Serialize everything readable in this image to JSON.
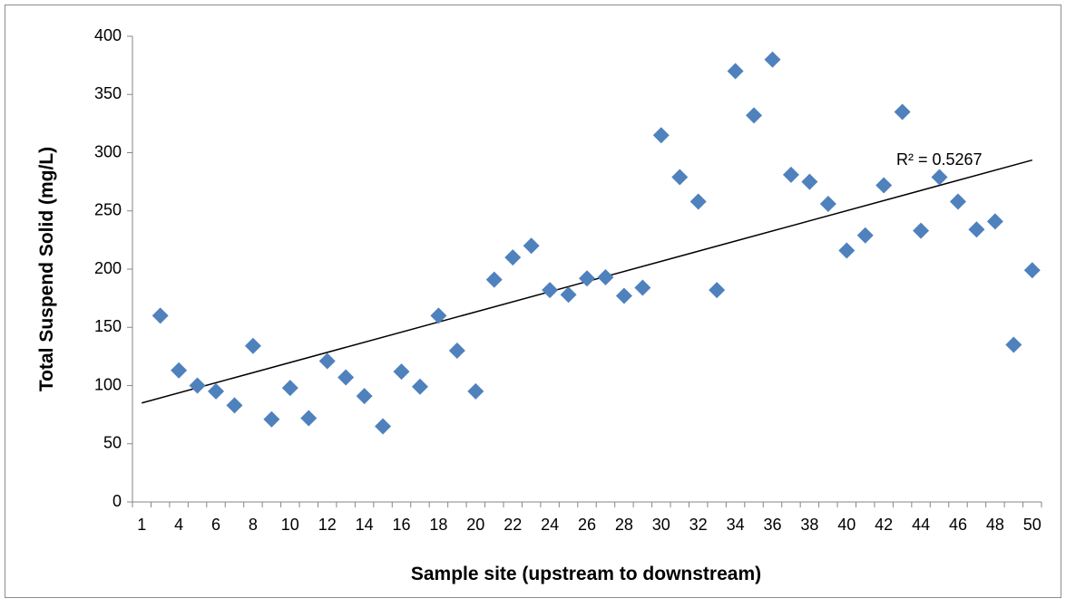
{
  "chart_data": {
    "type": "scatter",
    "x_label": "Sample site (upstream to downstream)",
    "y_label": "Total Suspend Solid (mg/L)",
    "annotation": "R² = 0.5267",
    "trendline": "linear",
    "color": "#4f81bd",
    "categories": [
      "1",
      null,
      "4",
      null,
      "6",
      null,
      "8",
      null,
      "10",
      null,
      "12",
      null,
      "14",
      null,
      "16",
      null,
      "18",
      null,
      "20",
      null,
      "22",
      null,
      "24",
      null,
      "26",
      null,
      "28",
      null,
      "30",
      null,
      "32",
      null,
      "34",
      null,
      "36",
      null,
      "38",
      null,
      "40",
      null,
      "42",
      null,
      "44",
      null,
      "46",
      null,
      "48",
      null,
      "50"
    ],
    "values": [
      null,
      160,
      113,
      100,
      95,
      83,
      134,
      71,
      98,
      72,
      121,
      107,
      91,
      65,
      112,
      99,
      160,
      130,
      95,
      191,
      210,
      220,
      182,
      178,
      192,
      193,
      177,
      184,
      315,
      279,
      258,
      182,
      370,
      332,
      380,
      281,
      275,
      256,
      216,
      229,
      272,
      335,
      233,
      279,
      258,
      234,
      241,
      135,
      199
    ],
    "ylim": [
      0,
      400
    ],
    "yticks": [
      0,
      50,
      100,
      150,
      200,
      250,
      300,
      350,
      400
    ],
    "grid": false
  }
}
